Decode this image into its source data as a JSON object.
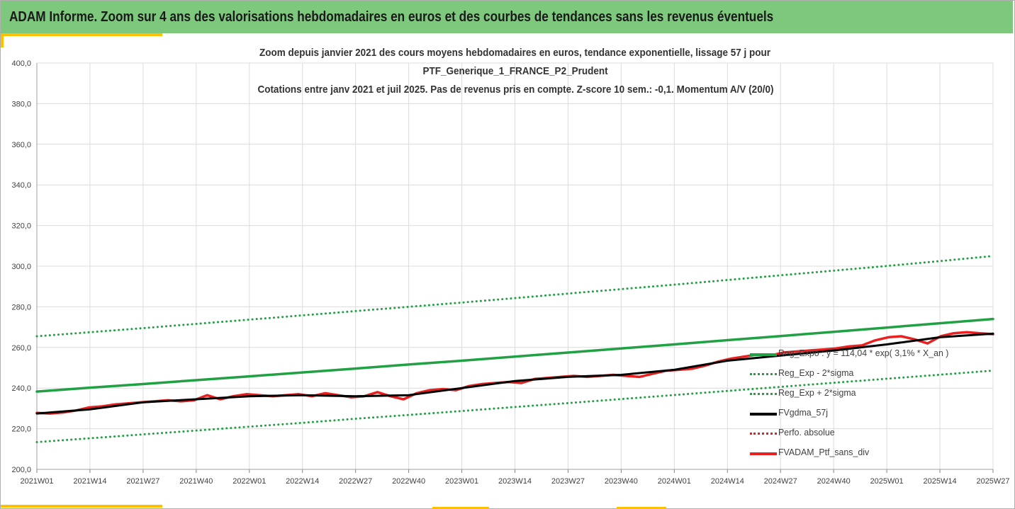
{
  "banner": {
    "title": "ADAM Informe. Zoom sur 4 ans des valorisations hebdomadaires en euros et des courbes de tendances sans les revenus éventuels",
    "color": "#7dc87d",
    "accent_color": "#ffc000"
  },
  "chart_data": {
    "type": "line",
    "title_lines": [
      "Zoom depuis janvier 2021 des cours moyens hebdomadaires  en euros, tendance exponentielle, lissage 57 j pour",
      "PTF_Generique_1_FRANCE_P2_Prudent",
      "Cotations entre janv 2021 et juil 2025. Pas de revenus pris en compte. Z-score 10 sem.: -0,1. Momentum A/V (20/0)"
    ],
    "xlabel": "",
    "ylabel": "",
    "ylim": [
      200,
      400
    ],
    "yticks": [
      "400,0",
      "380,0",
      "360,0",
      "340,0",
      "320,0",
      "300,0",
      "280,0",
      "260,0",
      "240,0",
      "220,0",
      "200,0"
    ],
    "x_ticks": [
      "2021W01",
      "2021W14",
      "2021W27",
      "2021W40",
      "2022W01",
      "2022W14",
      "2022W27",
      "2022W40",
      "2023W01",
      "2023W14",
      "2023W27",
      "2023W40",
      "2024W01",
      "2024W14",
      "2024W27",
      "2024W40",
      "2025W01",
      "2025W14",
      "2025W27"
    ],
    "grid": true,
    "legend_position": "bottom-right",
    "series": [
      {
        "name": "Reg_Expo : y = 114,04 * exp( 3,1% *  X_an )",
        "color": "#21a144",
        "style": "solid",
        "values": [
          238.3,
          240.2,
          242.0,
          243.9,
          245.8,
          247.7,
          249.6,
          251.6,
          253.5,
          255.5,
          257.5,
          259.5,
          261.5,
          263.6,
          265.6,
          267.7,
          269.8,
          271.9,
          274.0
        ]
      },
      {
        "name": "Reg_Exp - 2*sigma",
        "color": "#21a144",
        "style": "dotted",
        "values": [
          213.4,
          215.3,
          217.2,
          219.1,
          221.0,
          222.9,
          224.9,
          226.8,
          228.7,
          230.7,
          232.6,
          234.6,
          236.6,
          238.6,
          240.6,
          242.6,
          244.6,
          246.6,
          248.6
        ]
      },
      {
        "name": "Reg_Exp + 2*sigma",
        "color": "#21a144",
        "style": "dotted",
        "values": [
          265.5,
          267.5,
          269.5,
          271.6,
          273.7,
          275.8,
          277.9,
          280.0,
          282.1,
          284.3,
          286.5,
          288.7,
          290.9,
          293.2,
          295.5,
          297.8,
          300.1,
          302.5,
          305.0
        ]
      },
      {
        "name": "FVgdma_57j",
        "color": "#000000",
        "style": "solid",
        "values": [
          227.5,
          229.5,
          233.0,
          234.5,
          236.0,
          236.5,
          236.0,
          236.5,
          240.0,
          243.5,
          245.5,
          246.5,
          249.0,
          253.5,
          256.0,
          258.5,
          261.5,
          265.0,
          266.8
        ]
      },
      {
        "name": "Perfo. absolue",
        "color": "#e02020",
        "style": "dotted",
        "values": []
      },
      {
        "name": "FVADAM_Ptf_sans_div",
        "color": "#e82020",
        "style": "solid",
        "values": [
          227.8,
          227.5,
          228.0,
          229.0,
          230.5,
          231.0,
          232.0,
          232.5,
          233.0,
          233.5,
          234.0,
          233.5,
          234.0,
          236.5,
          234.5,
          236.0,
          237.0,
          236.5,
          236.0,
          236.5,
          237.0,
          236.0,
          237.5,
          236.5,
          235.5,
          236.0,
          238.0,
          236.0,
          234.5,
          237.5,
          239.0,
          239.5,
          239.0,
          241.0,
          242.0,
          242.5,
          243.0,
          242.5,
          244.5,
          245.0,
          245.5,
          246.0,
          245.5,
          246.0,
          246.5,
          246.0,
          245.5,
          247.0,
          248.5,
          249.0,
          249.5,
          251.0,
          253.0,
          254.5,
          255.5,
          256.5,
          256.0,
          257.5,
          258.0,
          258.5,
          259.0,
          259.5,
          260.5,
          261.0,
          263.5,
          265.0,
          265.5,
          264.0,
          262.0,
          265.5,
          267.0,
          267.5,
          267.0,
          266.5
        ]
      }
    ]
  }
}
